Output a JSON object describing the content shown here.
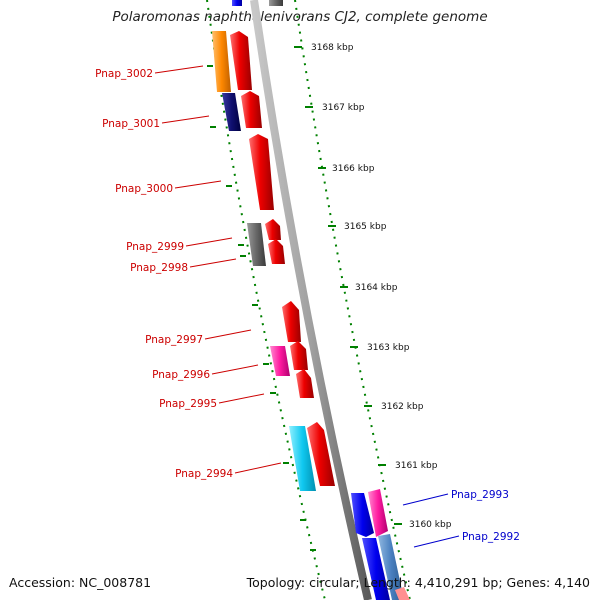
{
  "title": "Polaromonas naphthalenivorans CJ2, complete genome",
  "ticks": [
    "3168 kbp",
    "3167 kbp",
    "3166 kbp",
    "3165 kbp",
    "3164 kbp",
    "3163 kbp",
    "3162 kbp",
    "3161 kbp",
    "3160 kbp"
  ],
  "genes_left": [
    "Pnap_3002",
    "Pnap_3001",
    "Pnap_3000",
    "Pnap_2999",
    "Pnap_2998",
    "Pnap_2997",
    "Pnap_2996",
    "Pnap_2995",
    "Pnap_2994"
  ],
  "genes_right": [
    "Pnap_2993",
    "Pnap_2992"
  ],
  "colors": {
    "forward_feature": "#ff0000",
    "left_label": "#cc0000",
    "right_label": "#0000cc",
    "tick_mark": "#008000",
    "backbone": "#808080"
  },
  "footer": {
    "accession": "Accession: NC_008781",
    "summary": "Topology: circular; Length: 4,410,291 bp; Genes: 4,140"
  }
}
